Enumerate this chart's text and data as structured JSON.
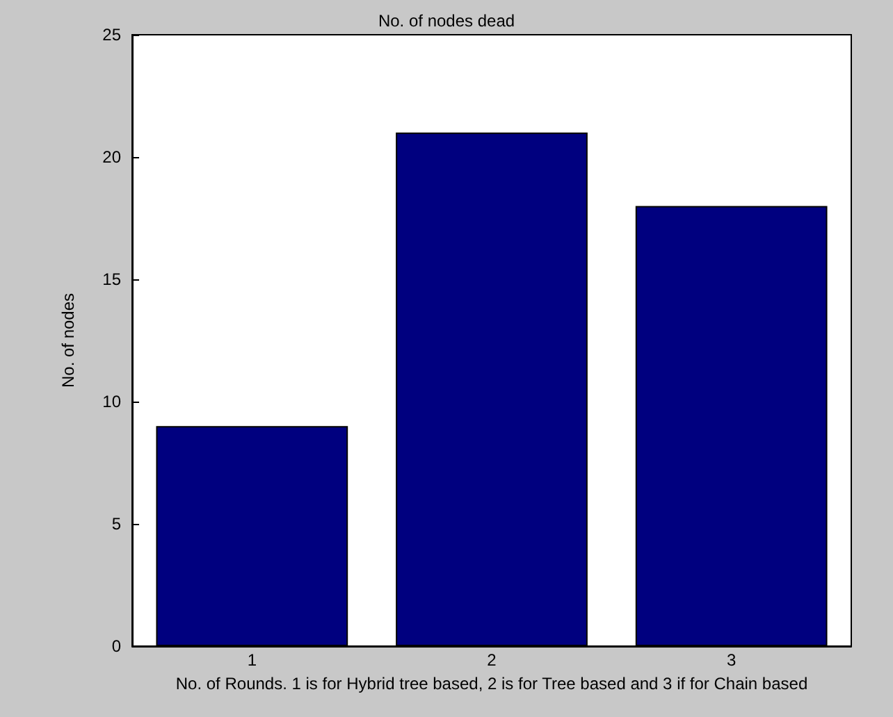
{
  "chart_data": {
    "type": "bar",
    "title": "No. of nodes dead",
    "xlabel": "No. of Rounds. 1 is for Hybrid tree based, 2 is for Tree based and 3 if for Chain based",
    "ylabel": "No. of nodes",
    "categories": [
      "1",
      "2",
      "3"
    ],
    "values": [
      9,
      21,
      18
    ],
    "color": "#00007f",
    "ylim": [
      0,
      25
    ],
    "yticks": [
      0,
      5,
      10,
      15,
      20,
      25
    ],
    "grid": false
  }
}
